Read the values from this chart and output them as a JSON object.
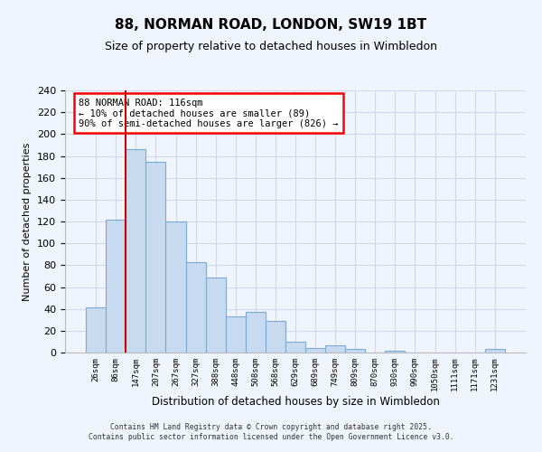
{
  "title": "88, NORMAN ROAD, LONDON, SW19 1BT",
  "subtitle": "Size of property relative to detached houses in Wimbledon",
  "xlabel": "Distribution of detached houses by size in Wimbledon",
  "ylabel": "Number of detached properties",
  "bar_labels": [
    "26sqm",
    "86sqm",
    "147sqm",
    "207sqm",
    "267sqm",
    "327sqm",
    "388sqm",
    "448sqm",
    "508sqm",
    "568sqm",
    "629sqm",
    "689sqm",
    "749sqm",
    "809sqm",
    "870sqm",
    "930sqm",
    "990sqm",
    "1050sqm",
    "1111sqm",
    "1171sqm",
    "1231sqm"
  ],
  "bar_values": [
    41,
    122,
    186,
    175,
    120,
    83,
    69,
    33,
    37,
    29,
    10,
    4,
    7,
    3,
    0,
    2,
    0,
    0,
    0,
    0,
    3
  ],
  "bar_color": "#c8daf0",
  "bar_edge_color": "#7aaad4",
  "ylim": [
    0,
    240
  ],
  "yticks": [
    0,
    20,
    40,
    60,
    80,
    100,
    120,
    140,
    160,
    180,
    200,
    220,
    240
  ],
  "vline_color": "#cc0000",
  "annotation_text_line1": "88 NORMAN ROAD: 116sqm",
  "annotation_text_line2": "← 10% of detached houses are smaller (89)",
  "annotation_text_line3": "90% of semi-detached houses are larger (826) →",
  "footer_line1": "Contains HM Land Registry data © Crown copyright and database right 2025.",
  "footer_line2": "Contains public sector information licensed under the Open Government Licence v3.0.",
  "bg_color": "#f0f4fc",
  "grid_color": "#d0d8ea",
  "title_fontsize": 11,
  "subtitle_fontsize": 9
}
